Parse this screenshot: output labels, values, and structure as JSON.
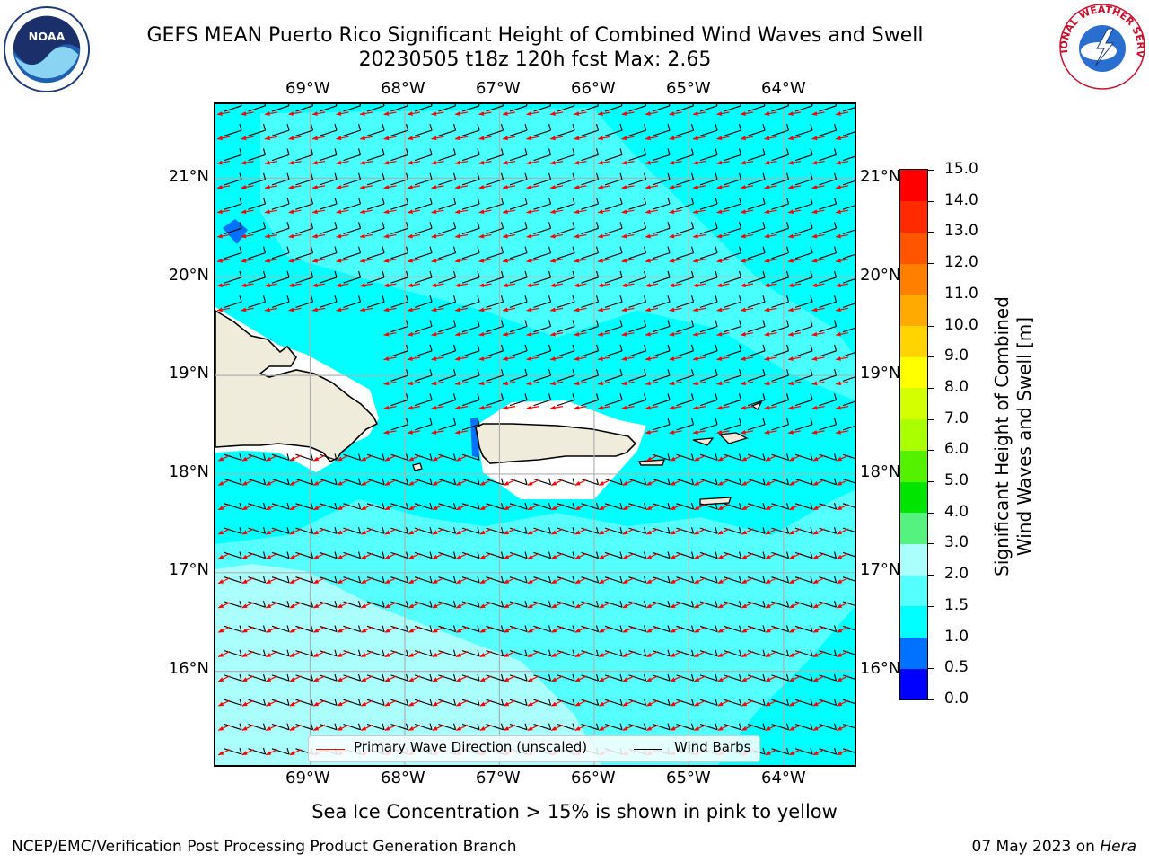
{
  "header": {
    "title_line1": "GEFS MEAN Puerto Rico Significant Height of Combined Wind Waves and Swell",
    "title_line2": "20230505 t18z 120h fcst   Max: 2.65",
    "noaa_logo_text": "NOAA",
    "nws_logo_text": "NATIONAL WEATHER SERVICE"
  },
  "map": {
    "lon_labels": [
      "69°W",
      "68°W",
      "67°W",
      "66°W",
      "65°W",
      "64°W"
    ],
    "lat_labels": [
      "21°N",
      "20°N",
      "19°N",
      "18°N",
      "17°N",
      "16°N"
    ],
    "lon_range": [
      -70,
      -63.25
    ],
    "lat_range": [
      15.05,
      21.75
    ],
    "colors": {
      "land": "#efecdc",
      "coast": "#000000",
      "gridline": "#b0b0b0",
      "wave_arrow": "#ff0000",
      "wind_barb": "#000000"
    }
  },
  "legend": {
    "wave_label": "Primary Wave Direction (unscaled)",
    "barb_label": "Wind Barbs"
  },
  "colorbar": {
    "label_line1": "Significant Height of Combined",
    "label_line2": "Wind Waves and Swell [m]",
    "ticks": [
      "0.0",
      "0.5",
      "1.0",
      "1.5",
      "2.0",
      "3.0",
      "4.0",
      "5.0",
      "6.0",
      "7.0",
      "8.0",
      "9.0",
      "10.0",
      "11.0",
      "12.0",
      "13.0",
      "14.0",
      "15.0"
    ],
    "colors": [
      "#0000ff",
      "#0072ff",
      "#00ffff",
      "#55fffe",
      "#aafffd",
      "#55f27f",
      "#00e500",
      "#55f200",
      "#aaff00",
      "#d4ff00",
      "#ffff00",
      "#ffd400",
      "#ffaa00",
      "#ff8000",
      "#ff5500",
      "#ff2a00",
      "#ff0000"
    ]
  },
  "footer": {
    "footnote": "Sea Ice Concentration > 15% is shown in pink to yellow",
    "credit": "NCEP/EMC/Verification Post Processing Product Generation Branch",
    "date_text": "07 May 2023 on ",
    "host": "Hera"
  }
}
